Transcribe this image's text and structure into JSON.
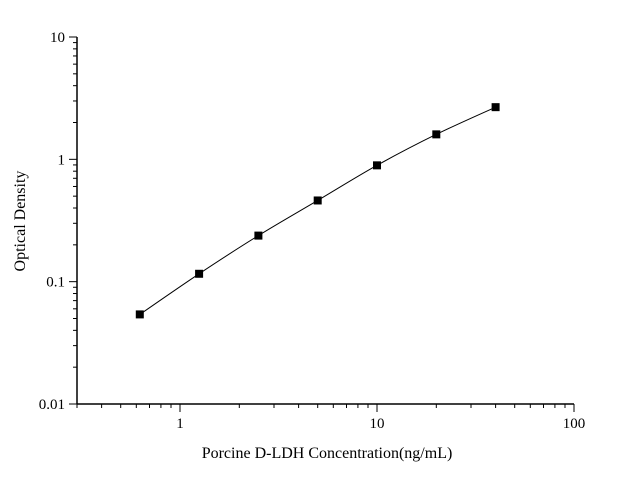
{
  "chart_data": {
    "type": "scatter",
    "title": "",
    "xlabel": "Porcine D-LDH Concentration(ng/mL)",
    "ylabel": "Optical Density",
    "x_scale": "log",
    "y_scale": "log",
    "xlim": [
      0.3,
      100
    ],
    "ylim": [
      0.01,
      10
    ],
    "x_ticks": [
      1,
      10,
      100
    ],
    "x_tick_labels": [
      "1",
      "10",
      "100"
    ],
    "y_ticks": [
      0.01,
      0.1,
      1,
      10
    ],
    "y_tick_labels": [
      "0.01",
      "0.1",
      "1",
      "10"
    ],
    "grid": false,
    "marker": "square",
    "fit_curve": true,
    "color": "#000000",
    "x": [
      0.625,
      1.25,
      2.5,
      5,
      10,
      20,
      40
    ],
    "y": [
      0.054,
      0.116,
      0.238,
      0.461,
      0.893,
      1.6,
      2.67
    ]
  }
}
